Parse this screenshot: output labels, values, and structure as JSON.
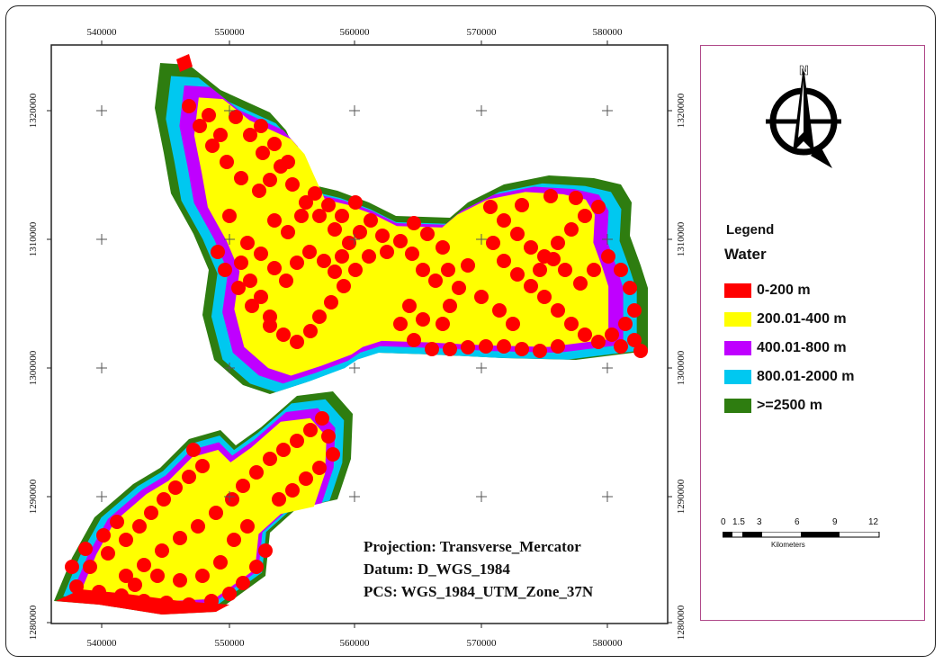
{
  "map": {
    "x_ticks": [
      "540000",
      "550000",
      "560000",
      "570000",
      "580000"
    ],
    "y_ticks": [
      "1320000",
      "1310000",
      "1300000",
      "1290000",
      "1280000"
    ],
    "projection_lines": [
      "Projection: Transverse_Mercator",
      "Datum: D_WGS_1984",
      "PCS: WGS_1984_UTM_Zone_37N"
    ]
  },
  "legend": {
    "title": "Legend",
    "subtitle": "Water",
    "items": [
      {
        "label": "0-200 m",
        "color": "#ff0000"
      },
      {
        "label": "200.01-400 m",
        "color": "#ffff00"
      },
      {
        "label": "400.01-800 m",
        "color": "#bf00ff"
      },
      {
        "label": "800.01-2000 m",
        "color": "#00c8f0"
      },
      {
        "label": ">=2500 m",
        "color": "#2e7d10"
      }
    ]
  },
  "north_arrow": {
    "letter": "N",
    "icon": "north-arrow-icon"
  },
  "scale_bar": {
    "labels": [
      "0",
      "1.5",
      "3",
      "6",
      "9",
      "12"
    ],
    "unit": "Kilometers"
  }
}
